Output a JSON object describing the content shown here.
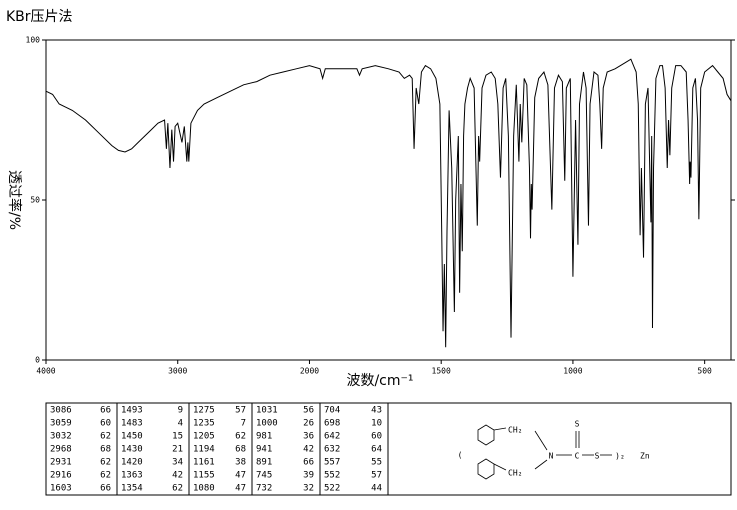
{
  "chart_data": {
    "type": "line",
    "title": "KBr压片法",
    "y_label": "透过率/%",
    "x_label": "波数/cm⁻¹",
    "xlim": [
      4000,
      400
    ],
    "x_scale_break": 2000,
    "xticks": [
      4000,
      3000,
      2000,
      1500,
      1000,
      500
    ],
    "ylim": [
      0,
      100
    ],
    "yticks": [
      0,
      50,
      100
    ],
    "color": "#000000",
    "x": [
      4000,
      3950,
      3900,
      3850,
      3800,
      3700,
      3600,
      3500,
      3450,
      3400,
      3350,
      3300,
      3250,
      3200,
      3150,
      3100,
      3086,
      3075,
      3059,
      3045,
      3032,
      3020,
      3000,
      2968,
      2950,
      2931,
      2923,
      2916,
      2900,
      2850,
      2800,
      2700,
      2600,
      2500,
      2400,
      2300,
      2200,
      2100,
      2000,
      1960,
      1950,
      1940,
      1900,
      1850,
      1820,
      1810,
      1800,
      1750,
      1700,
      1660,
      1640,
      1620,
      1610,
      1603,
      1595,
      1585,
      1575,
      1560,
      1540,
      1520,
      1505,
      1498,
      1493,
      1488,
      1483,
      1478,
      1470,
      1460,
      1450,
      1445,
      1435,
      1430,
      1425,
      1420,
      1415,
      1410,
      1400,
      1390,
      1375,
      1363,
      1358,
      1354,
      1345,
      1330,
      1310,
      1295,
      1285,
      1275,
      1265,
      1255,
      1245,
      1235,
      1225,
      1215,
      1205,
      1200,
      1194,
      1185,
      1175,
      1165,
      1161,
      1158,
      1155,
      1145,
      1130,
      1110,
      1095,
      1080,
      1070,
      1055,
      1040,
      1031,
      1025,
      1010,
      1000,
      990,
      981,
      975,
      960,
      950,
      941,
      935,
      920,
      905,
      898,
      891,
      885,
      870,
      840,
      800,
      780,
      760,
      752,
      745,
      740,
      732,
      725,
      715,
      704,
      701,
      698,
      694,
      685,
      670,
      660,
      650,
      642,
      637,
      632,
      625,
      610,
      590,
      570,
      563,
      557,
      555,
      552,
      545,
      535,
      527,
      522,
      515,
      500,
      470,
      450,
      430,
      415,
      400
    ],
    "values": [
      84,
      83,
      80,
      79,
      78,
      75,
      71,
      67,
      65.5,
      65,
      66,
      68,
      70,
      72,
      74,
      75,
      66,
      74,
      60,
      72,
      62,
      73,
      74,
      68,
      73,
      62,
      68,
      62,
      74,
      78,
      80,
      82,
      84,
      86,
      87,
      89,
      90,
      91,
      92,
      91,
      88,
      91,
      91,
      91,
      91,
      89,
      91,
      92,
      91,
      90,
      88,
      89,
      88,
      66,
      85,
      80,
      90,
      92,
      91,
      88,
      80,
      40,
      9,
      30,
      4,
      40,
      78,
      60,
      15,
      50,
      70,
      21,
      55,
      34,
      70,
      80,
      85,
      88,
      85,
      42,
      70,
      62,
      85,
      89,
      90,
      88,
      80,
      57,
      85,
      88,
      70,
      7,
      70,
      86,
      62,
      80,
      68,
      88,
      86,
      60,
      38,
      55,
      47,
      82,
      88,
      90,
      86,
      47,
      85,
      89,
      87,
      56,
      85,
      88,
      26,
      75,
      36,
      80,
      90,
      85,
      42,
      80,
      90,
      89,
      80,
      66,
      85,
      90,
      91,
      93,
      94,
      90,
      80,
      39,
      60,
      32,
      80,
      85,
      43,
      70,
      10,
      60,
      88,
      92,
      92,
      85,
      60,
      75,
      64,
      85,
      92,
      92,
      90,
      75,
      55,
      62,
      57,
      85,
      88,
      75,
      44,
      85,
      90,
      92,
      90,
      88,
      83,
      81
    ]
  },
  "peak_table": [
    [
      [
        3086,
        66
      ],
      [
        3059,
        60
      ],
      [
        3032,
        62
      ],
      [
        2968,
        68
      ],
      [
        2931,
        62
      ],
      [
        2916,
        62
      ],
      [
        1603,
        66
      ]
    ],
    [
      [
        1493,
        9
      ],
      [
        1483,
        4
      ],
      [
        1450,
        15
      ],
      [
        1430,
        21
      ],
      [
        1420,
        34
      ],
      [
        1363,
        42
      ],
      [
        1354,
        62
      ]
    ],
    [
      [
        1275,
        57
      ],
      [
        1235,
        7
      ],
      [
        1205,
        62
      ],
      [
        1194,
        68
      ],
      [
        1161,
        38
      ],
      [
        1155,
        47
      ],
      [
        1080,
        47
      ]
    ],
    [
      [
        1031,
        56
      ],
      [
        1000,
        26
      ],
      [
        981,
        36
      ],
      [
        941,
        42
      ],
      [
        891,
        66
      ],
      [
        745,
        39
      ],
      [
        732,
        32
      ]
    ],
    [
      [
        704,
        43
      ],
      [
        698,
        10
      ],
      [
        642,
        60
      ],
      [
        632,
        64
      ],
      [
        557,
        55
      ],
      [
        552,
        57
      ],
      [
        522,
        44
      ]
    ]
  ],
  "structure": {
    "labels": [
      "(",
      "CH₂",
      "CH₂",
      "N",
      "C",
      "S",
      "S",
      ")₂",
      "Zn"
    ]
  }
}
